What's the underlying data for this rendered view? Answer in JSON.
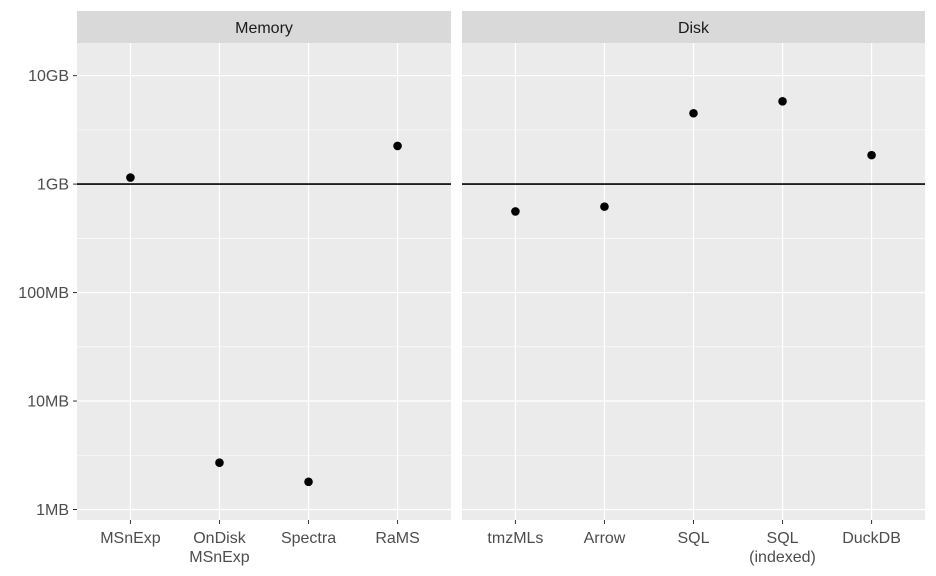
{
  "chart_data": {
    "type": "scatter",
    "y_scale": "log10",
    "y_unit": "bytes",
    "ylim": [
      800000,
      20000000000
    ],
    "y_ticks": [
      {
        "value": 1000000,
        "label": "1MB"
      },
      {
        "value": 10000000,
        "label": "10MB"
      },
      {
        "value": 100000000,
        "label": "100MB"
      },
      {
        "value": 1000000000,
        "label": "1GB"
      },
      {
        "value": 10000000000,
        "label": "10GB"
      }
    ],
    "hline": 1000000000,
    "panels": [
      {
        "title": "Memory",
        "categories": [
          "MSnExp",
          "OnDisk\nMSnExp",
          "Spectra",
          "RaMS"
        ],
        "values": [
          1150000000,
          2700000,
          1800000,
          2250000000
        ]
      },
      {
        "title": "Disk",
        "categories": [
          "tmzMLs",
          "Arrow",
          "SQL",
          "SQL\n(indexed)",
          "DuckDB"
        ],
        "values": [
          560000000,
          620000000,
          4500000000,
          5800000000,
          1850000000
        ]
      }
    ],
    "grid": true,
    "legend": "none",
    "colors": {
      "panel_background": "#ebebeb",
      "strip_background": "#d9d9d9",
      "grid": "#ffffff",
      "point": "#000000",
      "hline": "#000000",
      "tick_text": "#4d4d4d",
      "strip_text": "#1a1a1a"
    }
  }
}
